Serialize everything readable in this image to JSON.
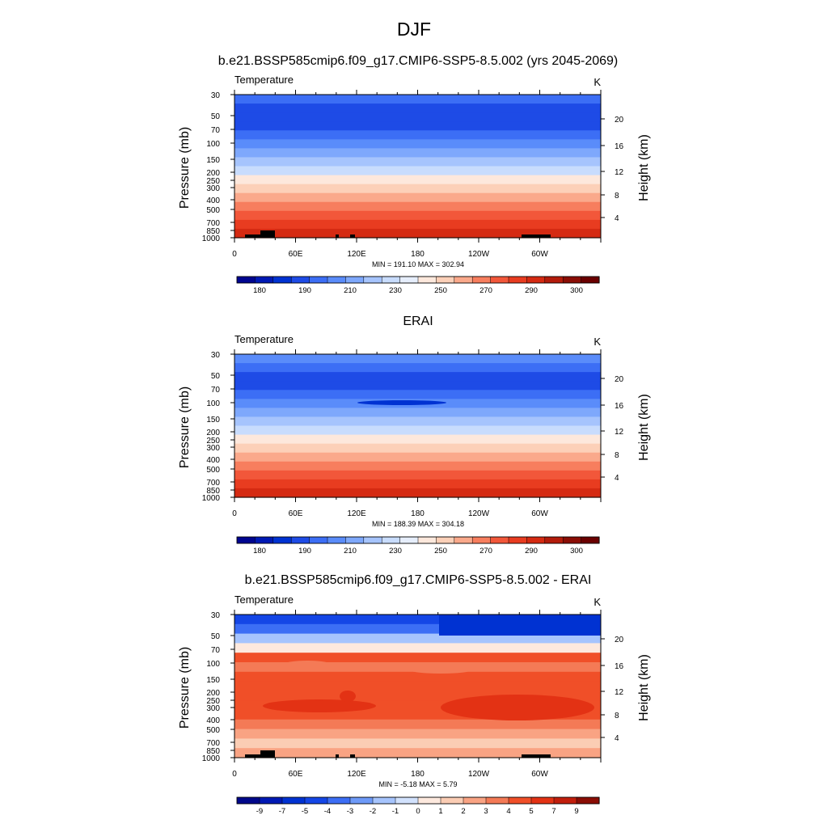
{
  "figure": {
    "title": "DJF"
  },
  "colors": {
    "abs_palette": [
      "#000590",
      "#0019b4",
      "#0032d2",
      "#1e4be6",
      "#3c6ef5",
      "#5a8cfa",
      "#7ea8fc",
      "#a6c4fd",
      "#c8dcfd",
      "#e6eefc",
      "#fde8dc",
      "#fcd0b8",
      "#faa98b",
      "#f77e5e",
      "#f2573a",
      "#e83c20",
      "#d52a12",
      "#b31b0b",
      "#8a0d05",
      "#6a0000"
    ],
    "diff_palette": [
      "#00088a",
      "#0019b4",
      "#0032d2",
      "#1446e6",
      "#3c6ef5",
      "#6e9af8",
      "#a6c4fd",
      "#d2e2fd",
      "#fde9de",
      "#fbcdb4",
      "#f9a383",
      "#f47a56",
      "#f04f28",
      "#e33214",
      "#c11e0c",
      "#8a0d05"
    ]
  },
  "chart_data": [
    {
      "type": "heatmap",
      "title": "b.e21.BSSP585cmip6.f09_g17.CMIP6-SSP5-8.5.002 (yrs 2045-2069)",
      "left_label": "Temperature",
      "right_label": "K",
      "ylabel": "Pressure (mb)",
      "ylabel_right": "Height (km)",
      "x_ticks": [
        "0",
        "60E",
        "120E",
        "180",
        "120W",
        "60W"
      ],
      "y_ticks": [
        "30",
        "50",
        "70",
        "100",
        "150",
        "200",
        "250",
        "300",
        "400",
        "500",
        "700",
        "850",
        "1000"
      ],
      "y_ticks_right": [
        "20",
        "16",
        "12",
        "8",
        "4"
      ],
      "stats": "MIN = 191.10  MAX = 302.94",
      "colorbar_labels": [
        "180",
        "190",
        "210",
        "230",
        "250",
        "270",
        "290",
        "300"
      ],
      "levels_top_to_bottom": [
        "#3c6ef5",
        "#1e4be6",
        "#1e4be6",
        "#1e4be6",
        "#3c6ef5",
        "#5a8cfa",
        "#7ea8fc",
        "#a6c4fd",
        "#c8dcfd",
        "#fde8dc",
        "#fcd0b8",
        "#faa98b",
        "#f77e5e",
        "#f2573a",
        "#e83c20",
        "#d52a12"
      ]
    },
    {
      "type": "heatmap",
      "title": "ERAI",
      "left_label": "Temperature",
      "right_label": "K",
      "ylabel": "Pressure (mb)",
      "ylabel_right": "Height (km)",
      "x_ticks": [
        "0",
        "60E",
        "120E",
        "180",
        "120W",
        "60W"
      ],
      "y_ticks": [
        "30",
        "50",
        "70",
        "100",
        "150",
        "200",
        "250",
        "300",
        "400",
        "500",
        "700",
        "850",
        "1000"
      ],
      "y_ticks_right": [
        "20",
        "16",
        "12",
        "8",
        "4"
      ],
      "stats": "MIN = 188.39  MAX = 304.18",
      "colorbar_labels": [
        "180",
        "190",
        "210",
        "230",
        "250",
        "270",
        "290",
        "300"
      ],
      "levels_top_to_bottom": [
        "#5a8cfa",
        "#3c6ef5",
        "#1e4be6",
        "#1e4be6",
        "#3c6ef5",
        "#5a8cfa",
        "#7ea8fc",
        "#a6c4fd",
        "#c8dcfd",
        "#fde8dc",
        "#fcd0b8",
        "#faa98b",
        "#f77e5e",
        "#f2573a",
        "#e83c20",
        "#d52a12"
      ]
    },
    {
      "type": "heatmap",
      "title": "b.e21.BSSP585cmip6.f09_g17.CMIP6-SSP5-8.5.002 - ERAI",
      "left_label": "Temperature",
      "right_label": "K",
      "ylabel": "Pressure (mb)",
      "ylabel_right": "Height (km)",
      "x_ticks": [
        "0",
        "60E",
        "120E",
        "180",
        "120W",
        "60W"
      ],
      "y_ticks": [
        "30",
        "50",
        "70",
        "100",
        "150",
        "200",
        "250",
        "300",
        "400",
        "500",
        "700",
        "850",
        "1000"
      ],
      "y_ticks_right": [
        "20",
        "16",
        "12",
        "8",
        "4"
      ],
      "stats": "MIN =  -5.18  MAX =   5.79",
      "colorbar_labels": [
        "-9",
        "-7",
        "-5",
        "-4",
        "-3",
        "-2",
        "-1",
        "0",
        "1",
        "2",
        "3",
        "4",
        "5",
        "7",
        "9"
      ],
      "levels_top_to_bottom": [
        "#1446e6",
        "#3c6ef5",
        "#a6c4fd",
        "#fde9de",
        "#f04f28",
        "#f47a56",
        "#f04f28",
        "#f04f28",
        "#f04f28",
        "#f04f28",
        "#f04f28",
        "#f47a56",
        "#f9a383",
        "#fbcdb4",
        "#f9a383"
      ]
    }
  ]
}
